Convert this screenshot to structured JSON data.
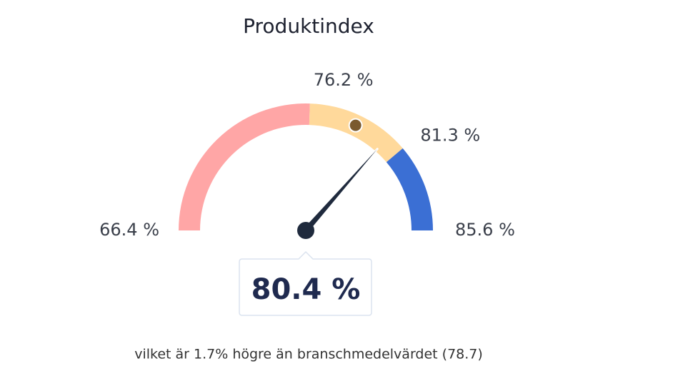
{
  "chart_data": {
    "type": "gauge",
    "title": "Produktindex",
    "ylim": [
      66.4,
      85.6
    ],
    "yticks": [
      {
        "value": 66.4,
        "label": "66.4 %"
      },
      {
        "value": 76.2,
        "label": "76.2 %"
      },
      {
        "value": 81.3,
        "label": "81.3 %"
      },
      {
        "value": 85.6,
        "label": "85.6 %"
      }
    ],
    "band_colors": [
      "#ffa6a6",
      "#ffd99b",
      "#3b6fd4"
    ],
    "value": 80.4,
    "value_label": "80.4 %",
    "needle_color": "#1f2a3d",
    "benchmark": 78.7,
    "benchmark_color": "#7a5a2e",
    "note": "vilket är 1.7% högre än branschmedelvärdet (78.7)"
  }
}
